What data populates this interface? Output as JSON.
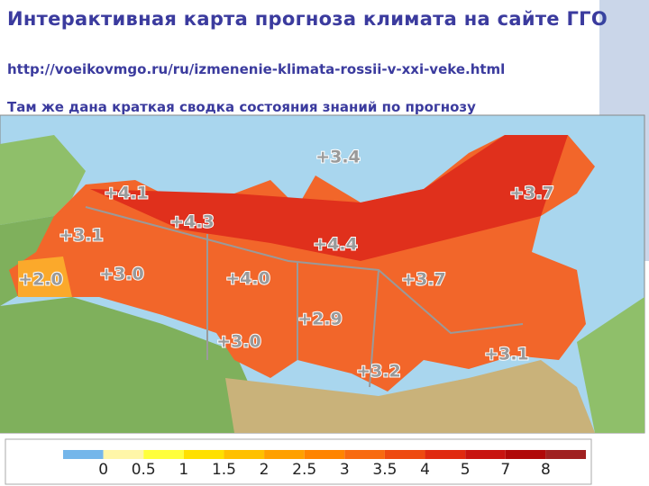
{
  "header": {
    "title": "Интерактивная карта прогноза климата на сайте ГГО",
    "url": "http://voeikovmgo.ru/ru/izmenenie-klimata-rossii-v-xxi-veke.html",
    "subtitle": "Там же дана краткая сводка состояния знаний по прогнозу"
  },
  "map": {
    "labels": [
      "+3.4",
      "+4.1",
      "+3.7",
      "+3.1",
      "+4.3",
      "+4.4",
      "+2.0",
      "+3.0",
      "+4.0",
      "+3.7",
      "+2.9",
      "+3.0",
      "+3.1",
      "+3.2"
    ]
  },
  "legend": {
    "colors": [
      "#74b6ea",
      "#fff6a8",
      "#ffff3c",
      "#ffe000",
      "#ffc000",
      "#ffa000",
      "#ff8400",
      "#f86a10",
      "#ee4a10",
      "#e02a10",
      "#c81410",
      "#b00808",
      "#a02020"
    ],
    "labels": [
      "0",
      "0.5",
      "1",
      "1.5",
      "2",
      "2.5",
      "3",
      "3.5",
      "4",
      "5",
      "7",
      "8"
    ]
  }
}
